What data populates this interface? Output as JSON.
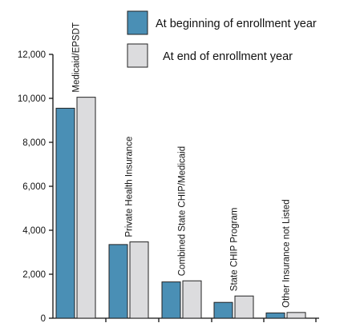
{
  "chart_data": {
    "type": "bar",
    "title": "",
    "xlabel": "",
    "ylabel": "",
    "categories": [
      "Medicaid/EPSDT",
      "Private Health Insurance",
      "Combined State CHIP/Medicaid",
      "State CHIP Program",
      "Other Insurance not Listed"
    ],
    "series": [
      {
        "name": "At beginning of enrollment year",
        "color": "#4a8fb5",
        "values": [
          9550,
          3350,
          1650,
          720,
          240
        ]
      },
      {
        "name": "At end of enrollment year",
        "color": "#dcdcde",
        "values": [
          10050,
          3470,
          1700,
          1010,
          260
        ]
      }
    ],
    "ylim": [
      0,
      12000
    ],
    "yticks": [
      0,
      2000,
      4000,
      6000,
      8000,
      10000,
      12000
    ],
    "ytick_labels": [
      "0",
      "2,000",
      "4,000",
      "6,000",
      "8,000",
      "10,000",
      "12,000"
    ],
    "grid": false,
    "legend_position": "top-right",
    "category_label_placement": "vertical-above-bars"
  }
}
